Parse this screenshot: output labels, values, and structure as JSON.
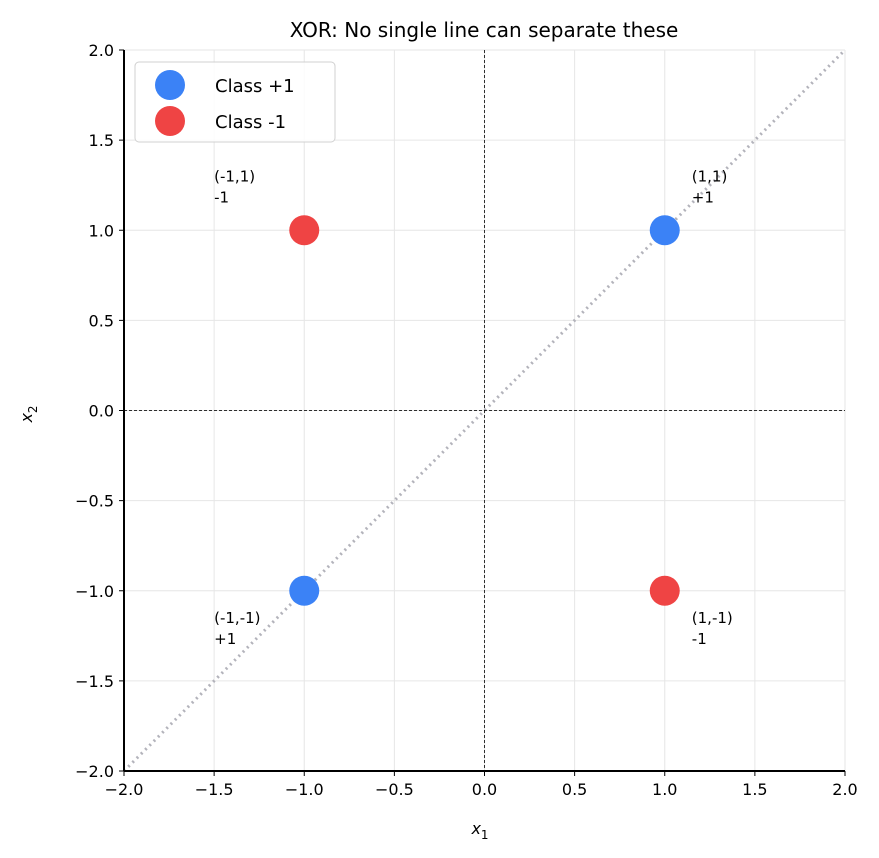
{
  "chart_data": {
    "type": "scatter",
    "title": "XOR: No single line can separate these",
    "xlabel": "x",
    "xlabel_sub": "1",
    "ylabel": "x",
    "ylabel_sub": "2",
    "xlim": [
      -2,
      2
    ],
    "ylim": [
      -2,
      2
    ],
    "grid": true,
    "legend_placement": "top-left",
    "xticks": [
      "−2.0",
      "−1.5",
      "−1.0",
      "−0.5",
      "0.0",
      "0.5",
      "1.0",
      "1.5",
      "2.0"
    ],
    "yticks": [
      "−2.0",
      "−1.5",
      "−1.0",
      "−0.5",
      "0.0",
      "0.5",
      "1.0",
      "1.5",
      "2.0"
    ],
    "series": [
      {
        "name": "Class +1",
        "color": "#3b82f6",
        "points": [
          [
            1,
            1
          ],
          [
            -1,
            -1
          ]
        ]
      },
      {
        "name": "Class -1",
        "color": "#ef4444",
        "points": [
          [
            -1,
            1
          ],
          [
            1,
            -1
          ]
        ]
      }
    ],
    "reference_lines": [
      {
        "type": "diagonal",
        "from": [
          -2,
          -2
        ],
        "to": [
          2,
          2
        ],
        "color": "#b3b3bb"
      },
      {
        "type": "horizontal",
        "y": 0,
        "color": "#000000"
      },
      {
        "type": "vertical",
        "x": 0,
        "color": "#000000"
      }
    ],
    "annotations": [
      {
        "line1": "(-1,1)",
        "line2": "-1",
        "x": -1.5,
        "y": 1.27
      },
      {
        "line1": "(1,1)",
        "line2": "+1",
        "x": 1.15,
        "y": 1.27
      },
      {
        "line1": "(-1,-1)",
        "line2": "+1",
        "x": -1.5,
        "y": -1.18
      },
      {
        "line1": "(1,-1)",
        "line2": "-1",
        "x": 1.15,
        "y": -1.18
      }
    ]
  }
}
